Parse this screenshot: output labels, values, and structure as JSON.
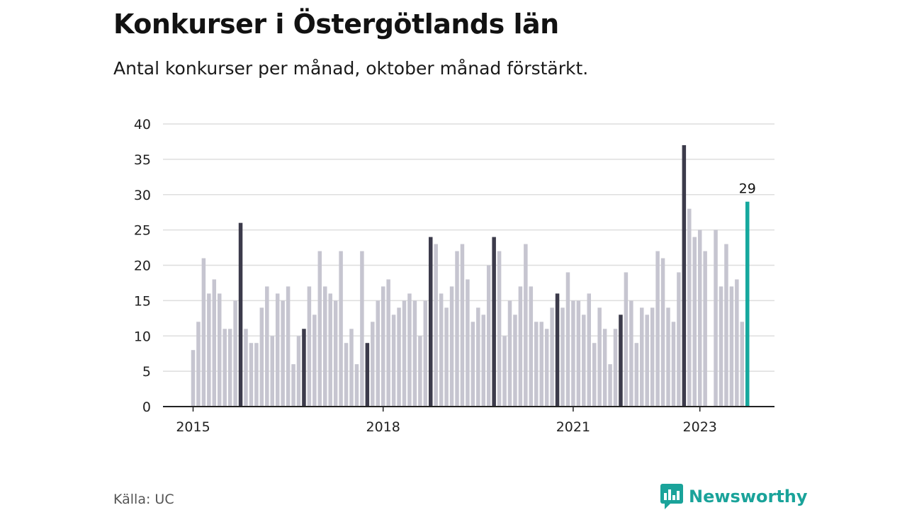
{
  "title": "Konkurser i Östergötlands län",
  "subtitle": "Antal konkurser per månad, oktober månad förstärkt.",
  "source": "Källa: UC",
  "brand": {
    "name": "Newsworthy",
    "icon": "newsworthy-logo-icon"
  },
  "colors": {
    "bar": "#c6c5d0",
    "highlight": "#3c3b4b",
    "latest": "#16a89e",
    "grid": "#dedede",
    "axis": "#222222",
    "brand": "#1aa39a"
  },
  "chart_data": {
    "type": "bar",
    "start": "2015-01",
    "xlabel": "",
    "ylabel": "",
    "ylim": [
      0,
      40
    ],
    "yticks": [
      0,
      5,
      10,
      15,
      20,
      25,
      30,
      35,
      40
    ],
    "xticks": [
      {
        "label": "2015",
        "month": "2015-01"
      },
      {
        "label": "2018",
        "month": "2018-01"
      },
      {
        "label": "2021",
        "month": "2021-01"
      },
      {
        "label": "2023",
        "month": "2023-01"
      }
    ],
    "highlight_month": "oktober",
    "values": [
      8,
      12,
      21,
      16,
      18,
      16,
      11,
      11,
      15,
      26,
      11,
      9,
      9,
      14,
      17,
      10,
      16,
      15,
      17,
      6,
      10,
      11,
      17,
      13,
      22,
      17,
      16,
      15,
      22,
      9,
      11,
      6,
      22,
      9,
      12,
      15,
      17,
      18,
      13,
      14,
      15,
      16,
      15,
      10,
      15,
      24,
      23,
      16,
      14,
      17,
      22,
      23,
      18,
      12,
      14,
      13,
      20,
      24,
      22,
      10,
      15,
      13,
      17,
      23,
      17,
      12,
      12,
      11,
      14,
      16,
      14,
      19,
      15,
      15,
      13,
      16,
      9,
      14,
      11,
      6,
      11,
      13,
      19,
      15,
      9,
      14,
      13,
      14,
      22,
      21,
      14,
      12,
      19,
      37,
      28,
      24,
      25,
      22,
      0,
      25,
      17,
      23,
      17,
      18,
      12,
      29
    ],
    "annotations": [
      {
        "month": "2023-10",
        "label": "29"
      }
    ]
  }
}
